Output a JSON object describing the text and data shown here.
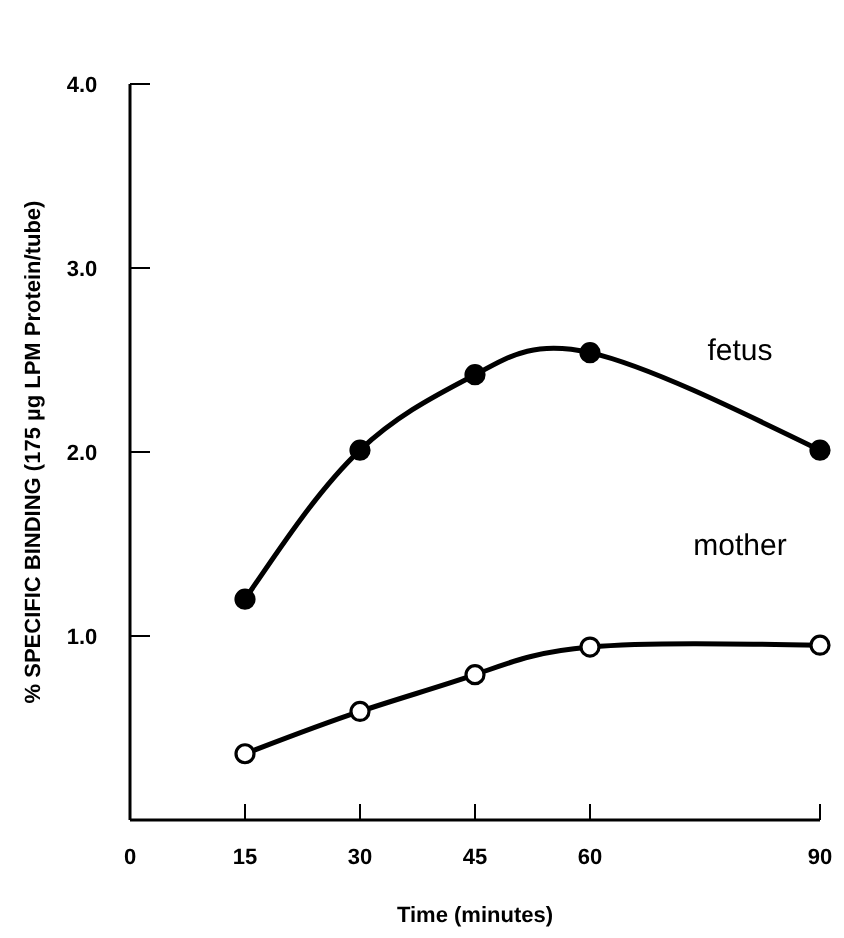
{
  "chart_data": {
    "type": "line",
    "xlabel": "Time (minutes)",
    "ylabel": "% SPECIFIC BINDING (175 µg LPM Protein/tube)",
    "x": [
      15,
      30,
      45,
      60,
      90
    ],
    "series": [
      {
        "name": "fetus",
        "color": "#000000",
        "marker": "circle",
        "values": [
          1.2,
          2.01,
          2.42,
          2.54,
          2.01
        ]
      },
      {
        "name": "mother",
        "color": "#000000",
        "marker": "circle",
        "values": [
          0.36,
          0.59,
          0.79,
          0.94,
          0.95
        ]
      }
    ],
    "xlim": [
      0,
      90
    ],
    "xticks": [
      0,
      15,
      30,
      45,
      60,
      90
    ],
    "ylim": [
      0,
      4
    ],
    "yticks": [
      {
        "value": 1,
        "label": "1.0"
      },
      {
        "value": 2,
        "label": "2.0"
      },
      {
        "value": 3,
        "label": "3.0"
      },
      {
        "value": 4,
        "label": "4.0"
      }
    ],
    "grid": false,
    "line_style": "solid"
  }
}
